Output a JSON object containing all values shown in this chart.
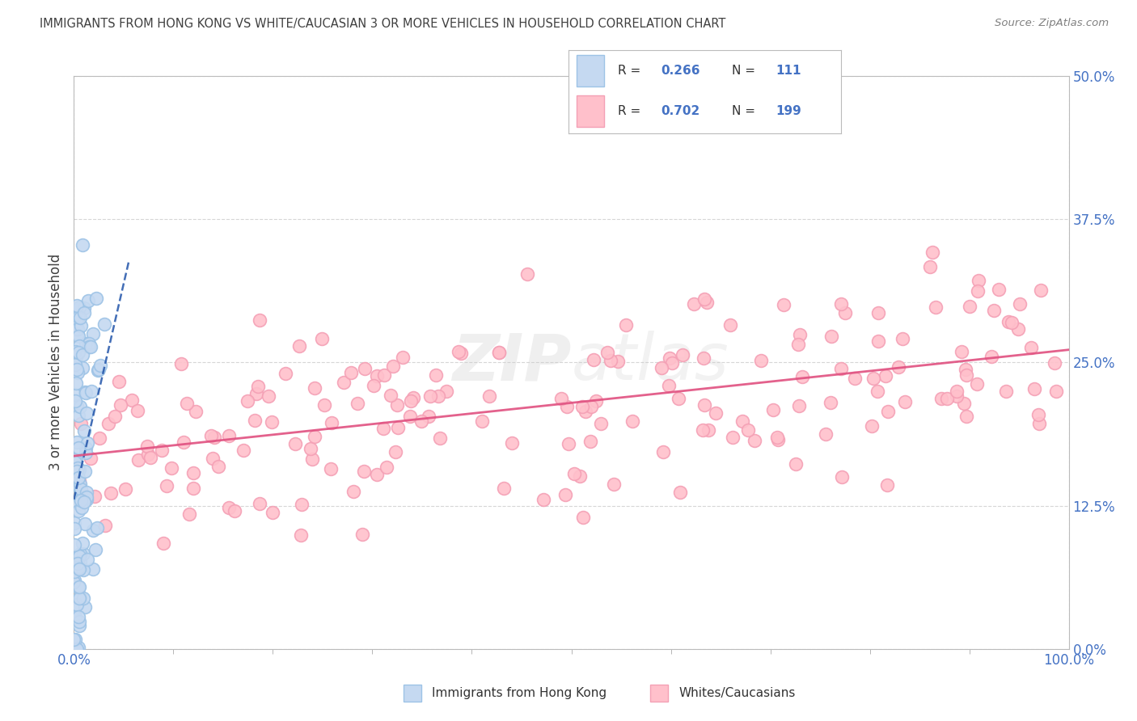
{
  "title": "IMMIGRANTS FROM HONG KONG VS WHITE/CAUCASIAN 3 OR MORE VEHICLES IN HOUSEHOLD CORRELATION CHART",
  "source": "Source: ZipAtlas.com",
  "ylabel": "3 or more Vehicles in Household",
  "ytick_labels": [
    "0.0%",
    "12.5%",
    "25.0%",
    "37.5%",
    "50.0%"
  ],
  "ytick_values": [
    0.0,
    12.5,
    25.0,
    37.5,
    50.0
  ],
  "legend_entry1": {
    "label": "Immigrants from Hong Kong",
    "R": 0.266,
    "N": 111,
    "fill_color": "#c5d9f1",
    "edge_color": "#9dc3e6"
  },
  "legend_entry2": {
    "label": "Whites/Caucasians",
    "R": 0.702,
    "N": 199,
    "fill_color": "#ffc0cb",
    "edge_color": "#f4a0b5"
  },
  "watermark_text": "ZIPatlas",
  "watermark_zip": "ZIP",
  "watermark_atlas": "atlas",
  "background_color": "#ffffff",
  "grid_color": "#cccccc",
  "title_color": "#404040",
  "source_color": "#808080",
  "blue_line_color": "#2255aa",
  "pink_line_color": "#e05080",
  "tick_color": "#4472c4",
  "ylabel_color": "#404040",
  "legend_text_dark": "#333333",
  "legend_text_blue": "#4472c4"
}
